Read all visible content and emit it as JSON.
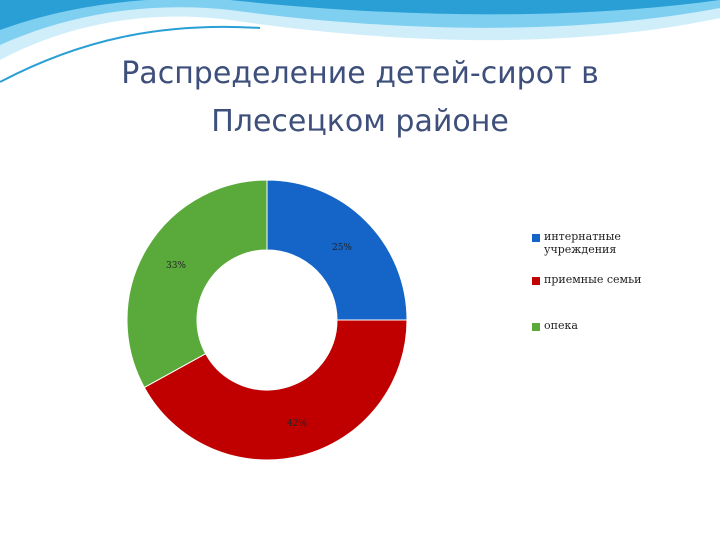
{
  "slide": {
    "title_lines": [
      "Распределение детей-сирот в",
      "Плесецком районе"
    ]
  },
  "chart_data": {
    "type": "donut",
    "categories": [
      "интернатные учреждения",
      "приемные семьи",
      "опека"
    ],
    "values": [
      25,
      42,
      33
    ],
    "data_labels": [
      "25%",
      "42%",
      "33%"
    ],
    "colors": [
      "#1565c9",
      "#c00000",
      "#5aaa3b"
    ],
    "legend_position": "right"
  },
  "legend": {
    "items": [
      {
        "label": "интернатные учреждения",
        "color": "#1565c9"
      },
      {
        "label": "приемные семьи",
        "color": "#c00000"
      },
      {
        "label": "опека",
        "color": "#5aaa3b"
      }
    ]
  },
  "decor": {
    "wave_colors": [
      "#2a9fd6",
      "#7fd0f0",
      "#cfeefa"
    ]
  }
}
